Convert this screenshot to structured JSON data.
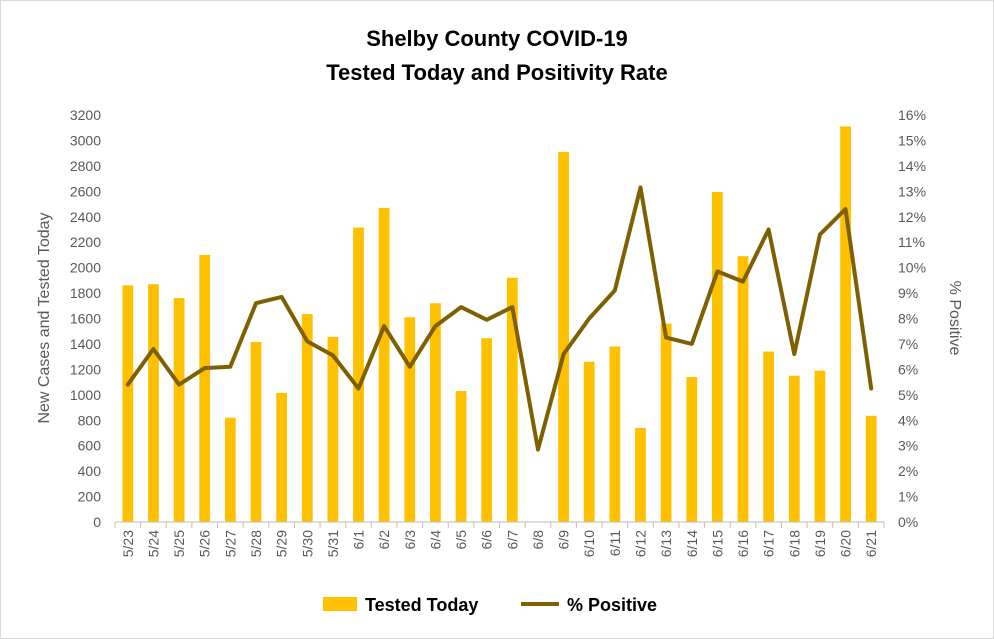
{
  "chart_data": {
    "type": "bar+line",
    "title": [
      "Shelby County COVID-19",
      "Tested Today and Positivity Rate"
    ],
    "ylabel_left": "New Cases and Tested Today",
    "ylabel_right": "% Positive",
    "ylim_left": [
      0,
      3200
    ],
    "ylim_right": [
      0,
      16
    ],
    "left_ticks": [
      "0",
      "200",
      "400",
      "600",
      "800",
      "1000",
      "1200",
      "1400",
      "1600",
      "1800",
      "2000",
      "2200",
      "2400",
      "2600",
      "2800",
      "3000",
      "3200"
    ],
    "right_ticks": [
      "0%",
      "1%",
      "2%",
      "3%",
      "4%",
      "5%",
      "6%",
      "7%",
      "8%",
      "9%",
      "10%",
      "11%",
      "12%",
      "13%",
      "14%",
      "15%",
      "16%"
    ],
    "categories": [
      "5/23",
      "5/24",
      "5/25",
      "5/26",
      "5/27",
      "5/28",
      "5/29",
      "5/30",
      "5/31",
      "6/1",
      "6/2",
      "6/3",
      "6/4",
      "6/5",
      "6/6",
      "6/7",
      "6/8",
      "6/9",
      "6/10",
      "6/11",
      "6/12",
      "6/13",
      "6/14",
      "6/15",
      "6/16",
      "6/17",
      "6/18",
      "6/19",
      "6/20",
      "6/21"
    ],
    "series": [
      {
        "name": "Tested Today",
        "kind": "bar",
        "axis": "left",
        "color": "#FFC000",
        "values": [
          1860,
          1870,
          1760,
          2100,
          820,
          1415,
          1015,
          1635,
          1455,
          2315,
          2470,
          1610,
          1720,
          1030,
          1445,
          1920,
          0,
          2910,
          1260,
          1380,
          740,
          1560,
          1140,
          2595,
          2090,
          1340,
          1150,
          1190,
          3110,
          835
        ]
      },
      {
        "name": "% Positive",
        "kind": "line",
        "axis": "right",
        "color": "#7F6000",
        "values": [
          5.4,
          6.8,
          5.4,
          6.05,
          6.1,
          8.6,
          8.85,
          7.1,
          6.55,
          5.25,
          7.7,
          6.1,
          7.7,
          8.45,
          7.95,
          8.45,
          2.85,
          6.6,
          8.0,
          9.1,
          13.15,
          7.25,
          7.0,
          9.85,
          9.45,
          11.5,
          6.6,
          11.3,
          12.3,
          5.25
        ]
      }
    ],
    "grid": false,
    "legend_position": "bottom"
  }
}
